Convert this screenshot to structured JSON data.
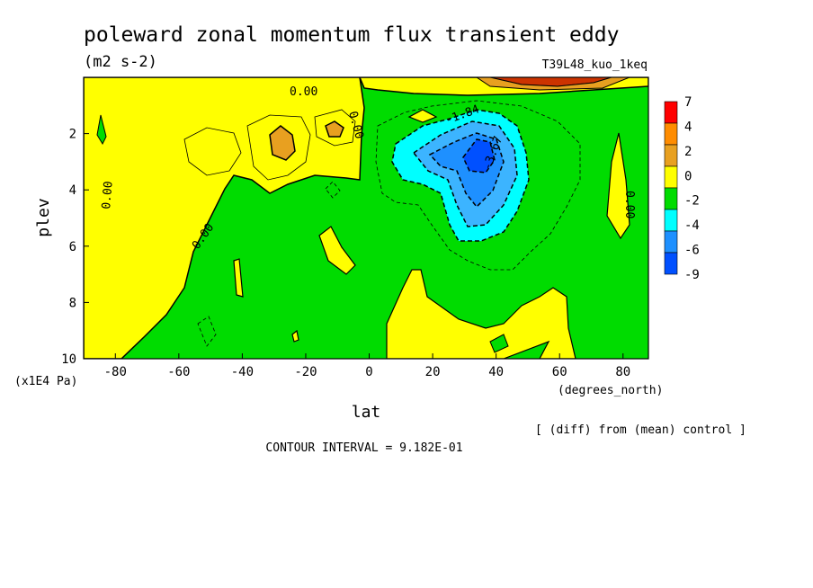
{
  "chart_data": {
    "type": "heatmap",
    "title": "poleward zonal momentum flux transient eddy",
    "units": "(m2 s-2)",
    "experiment": "T39L48_kuo_1keq",
    "xlabel": "lat",
    "x_unit": "(degrees_north)",
    "ylabel": "plev",
    "y_unit": "(x1E4 Pa)",
    "diff_note": "[ (diff) from (mean) control ]",
    "contour_interval": "CONTOUR INTERVAL = 9.182E-01",
    "xlim": [
      -90,
      88
    ],
    "ylim": [
      10,
      0
    ],
    "x_ticks": [
      -80,
      -60,
      -40,
      -20,
      0,
      20,
      40,
      60,
      80
    ],
    "x_tick_labels": [
      "-80",
      "-60",
      "-40",
      "-20",
      "0",
      "20",
      "40",
      "60",
      "80"
    ],
    "y_ticks": [
      2,
      4,
      6,
      8,
      10
    ],
    "y_tick_labels": [
      "2",
      "4",
      "6",
      "8",
      "10"
    ],
    "colorbar": {
      "labels": [
        "7",
        "4",
        "2",
        "0",
        "-2",
        "-4",
        "-6",
        "-9"
      ],
      "colors": [
        "#ff0000",
        "#ff8c00",
        "#e8a020",
        "#ffff00",
        "#00dc00",
        "#00ffff",
        "#1e90ff",
        "#0050ff"
      ]
    },
    "fill_colors": {
      "positive_1": "#ffff00",
      "positive_2": "#e8a020",
      "positive_high": "#cc3300",
      "zero_band": "#00dc00",
      "negative_1": "#00ffff",
      "negative_2": "#3cb4ff",
      "negative_3": "#1e90ff"
    },
    "contour_labels": [
      "0.00",
      "0.00",
      "0.00",
      "0.00",
      "0.00",
      "-1.84",
      "-3.67"
    ],
    "features": [
      {
        "kind": "max",
        "lat": -27,
        "plev": 2.5,
        "level": 2
      },
      {
        "kind": "max",
        "lat": -10,
        "plev": 2.0,
        "level": 2
      },
      {
        "kind": "min",
        "lat": 36,
        "plev": 2.9,
        "level": -6
      },
      {
        "kind": "max",
        "lat": 55,
        "plev": 0.1,
        "level": 7
      }
    ]
  }
}
